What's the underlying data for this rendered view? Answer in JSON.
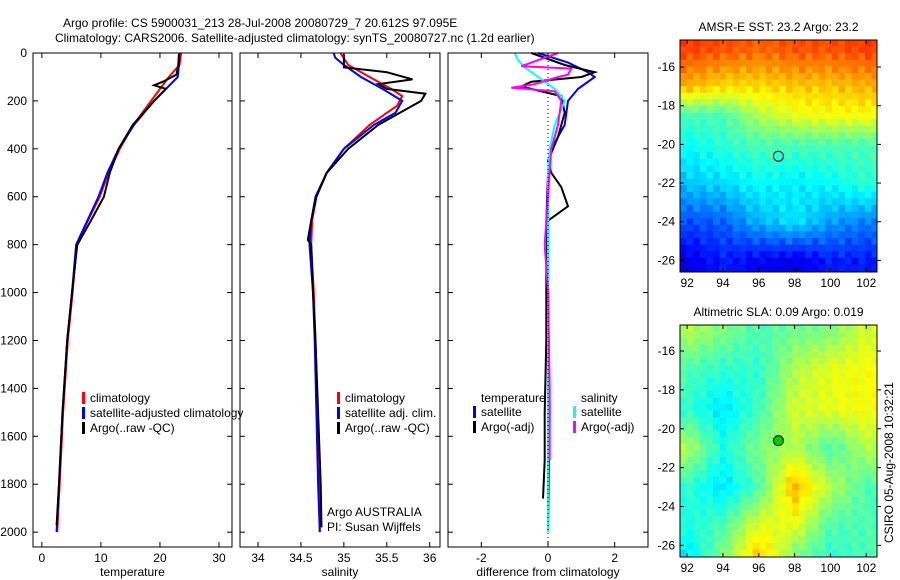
{
  "title": {
    "line1": "Argo profile: CS 5900031_213 28-Jul-2008 20080729_7 20.612S 97.095E",
    "line2": "Climatology: CARS2006. Satellite-adjusted climatology: synTS_20080727.nc (1.2d earlier)"
  },
  "side_label": "CSIRO 05-Aug-2008 10:32:21",
  "colors": {
    "climatology": "#ff0000",
    "satellite": "#0000ff",
    "argo": "#000000",
    "sal_satellite": "#00ffff",
    "sal_argo": "#ff00ff"
  },
  "chart_data": [
    {
      "type": "line",
      "xlabel": "temperature",
      "ylabel": "",
      "xlim": [
        -1.5,
        32.2
      ],
      "ylim": [
        0,
        2062
      ],
      "xticks": [
        "0",
        "10",
        "20",
        "30"
      ],
      "xtick_values": [
        0,
        10,
        20,
        30
      ],
      "yticks": [
        "0",
        "200",
        "400",
        "600",
        "800",
        "1000",
        "1200",
        "1400",
        "1600",
        "1800",
        "2000"
      ],
      "ytick_values": [
        0,
        200,
        400,
        600,
        800,
        1000,
        1200,
        1400,
        1600,
        1800,
        2000
      ],
      "legend": [
        "climatology",
        "satellite-adjusted climatology",
        "Argo(..raw -QC)"
      ],
      "series": [
        {
          "name": "climatology",
          "color": "#ff0000",
          "depth": [
            0,
            50,
            100,
            200,
            300,
            400,
            500,
            600,
            700,
            800,
            1000,
            1200,
            1500,
            1800,
            2000
          ],
          "values": [
            23.6,
            23.3,
            21.5,
            18.5,
            15.5,
            13.2,
            11.3,
            9.8,
            7.8,
            5.9,
            5.2,
            4.4,
            3.6,
            3.0,
            2.6
          ]
        },
        {
          "name": "satellite-adjusted climatology",
          "color": "#0000ff",
          "depth": [
            0,
            50,
            100,
            200,
            300,
            400,
            500,
            600,
            700,
            800,
            1000,
            1200,
            1500,
            1800,
            2000
          ],
          "values": [
            23.3,
            23.2,
            23.0,
            19.0,
            15.6,
            13.0,
            11.1,
            9.6,
            7.7,
            5.8,
            5.1,
            4.3,
            3.5,
            2.9,
            2.5
          ]
        },
        {
          "name": "Argo(..raw -QC)",
          "color": "#000000",
          "depth": [
            5,
            50,
            90,
            120,
            135,
            150,
            200,
            300,
            400,
            500,
            600,
            700,
            800,
            1000,
            1200,
            1500,
            1800,
            1970
          ],
          "values": [
            23.2,
            23.1,
            22.8,
            20.5,
            19.0,
            21.0,
            19.0,
            15.4,
            13.0,
            11.5,
            10.5,
            8.3,
            6.0,
            5.1,
            4.3,
            3.5,
            2.9,
            2.5
          ]
        }
      ]
    },
    {
      "type": "line",
      "xlabel": "salinity",
      "xlim": [
        33.79,
        36.12
      ],
      "ylim": [
        0,
        2062
      ],
      "xticks": [
        "34",
        "34.5",
        "35",
        "35.5",
        "36"
      ],
      "xtick_values": [
        34,
        34.5,
        35,
        35.5,
        36
      ],
      "legend": [
        "climatology",
        "satellite adj. clim.",
        "Argo(..raw -QC)"
      ],
      "annotation": [
        "Argo AUSTRALIA",
        "PI: Susan Wijffels"
      ],
      "series": [
        {
          "name": "climatology",
          "color": "#ff0000",
          "depth": [
            0,
            50,
            100,
            150,
            180,
            220,
            300,
            400,
            500,
            600,
            700,
            800,
            1000,
            1200,
            1500,
            1800,
            2000
          ],
          "values": [
            34.96,
            35.05,
            35.3,
            35.55,
            35.68,
            35.62,
            35.3,
            35.0,
            34.8,
            34.68,
            34.63,
            34.62,
            34.65,
            34.67,
            34.69,
            34.71,
            34.72
          ]
        },
        {
          "name": "satellite adj. clim.",
          "color": "#0000ff",
          "depth": [
            0,
            20,
            50,
            100,
            150,
            200,
            250,
            300,
            400,
            500,
            600,
            700,
            800,
            1000,
            1200,
            1500,
            1800,
            2000
          ],
          "values": [
            34.88,
            34.9,
            35.0,
            35.2,
            35.45,
            35.68,
            35.6,
            35.35,
            35.0,
            34.8,
            34.67,
            34.62,
            34.6,
            34.64,
            34.66,
            34.68,
            34.7,
            34.72
          ]
        },
        {
          "name": "Argo(..raw -QC)",
          "color": "#000000",
          "depth": [
            5,
            60,
            80,
            110,
            130,
            150,
            170,
            200,
            250,
            300,
            400,
            500,
            600,
            700,
            780,
            800,
            1000,
            1200,
            1500,
            1800,
            1980
          ],
          "values": [
            35.0,
            35.0,
            35.5,
            35.8,
            35.4,
            35.5,
            35.95,
            35.9,
            35.65,
            35.4,
            35.05,
            34.8,
            34.68,
            34.62,
            34.58,
            34.62,
            34.64,
            34.67,
            34.7,
            34.73,
            34.74
          ]
        }
      ]
    },
    {
      "type": "line",
      "xlabel": "difference from climatology",
      "xlim": [
        -3.0,
        3.0
      ],
      "ylim": [
        0,
        2062
      ],
      "xticks": [
        "-2",
        "0",
        "2"
      ],
      "xtick_values": [
        -2,
        0,
        2
      ],
      "legend_headers": [
        "temperature",
        "salinity"
      ],
      "legend": [
        "satellite",
        "Argo(-adj)",
        "satellite",
        "Argo(-adj)"
      ],
      "series": [
        {
          "name": "temperature satellite",
          "color": "#0000ff",
          "depth": [
            0,
            40,
            80,
            100,
            150,
            200,
            300,
            400,
            500,
            700,
            1000,
            1500,
            2000
          ],
          "values": [
            -0.3,
            0.6,
            1.2,
            1.4,
            0.9,
            0.6,
            0.5,
            0.1,
            0.0,
            -0.05,
            0.0,
            0.05,
            0.0
          ]
        },
        {
          "name": "temperature Argo(-adj)",
          "color": "#000000",
          "depth": [
            0,
            50,
            80,
            100,
            120,
            140,
            180,
            250,
            350,
            450,
            500,
            560,
            640,
            700,
            900,
            1200,
            1500,
            1700,
            1860
          ],
          "values": [
            -0.5,
            0.5,
            1.4,
            1.0,
            -0.5,
            -0.8,
            0.4,
            0.5,
            0.3,
            0.0,
            0.1,
            0.4,
            0.6,
            0.0,
            -0.05,
            -0.05,
            -0.1,
            -0.1,
            -0.15
          ]
        },
        {
          "name": "salinity satellite",
          "color": "#00ffff",
          "depth": [
            0,
            30,
            60,
            100,
            150,
            200,
            300,
            400,
            500,
            800,
            1200,
            1600,
            2000
          ],
          "values": [
            -1.0,
            -0.9,
            -0.7,
            -0.3,
            0.2,
            0.5,
            0.2,
            0.05,
            0.0,
            0.0,
            0.0,
            0.0,
            0.0
          ]
        },
        {
          "name": "salinity Argo(-adj)",
          "color": "#ff00ff",
          "depth": [
            0,
            40,
            55,
            65,
            90,
            100,
            130,
            145,
            160,
            200,
            300,
            400,
            700,
            800,
            1000,
            1400,
            1700
          ],
          "values": [
            0.3,
            -0.5,
            -0.8,
            0.7,
            0.6,
            0.3,
            -0.4,
            -1.1,
            0.2,
            0.4,
            0.3,
            0.1,
            -0.05,
            -0.1,
            0.0,
            0.05,
            0.05
          ]
        }
      ]
    },
    {
      "type": "heatmap",
      "title": "AMSR-E SST: 23.2 Argo: 23.2",
      "xlim": [
        91.6,
        102.6
      ],
      "ylim": [
        14.6,
        26.6
      ],
      "xticks": [
        "92",
        "94",
        "96",
        "98",
        "100",
        "102"
      ],
      "xtick_values": [
        92,
        94,
        96,
        98,
        100,
        102
      ],
      "yticks": [
        "-16",
        "-18",
        "-20",
        "-22",
        "-24",
        "-26"
      ],
      "ytick_values": [
        16,
        18,
        20,
        22,
        24,
        26
      ],
      "marker": {
        "lon": 97.095,
        "lat": 20.612,
        "fill": "none"
      },
      "grid_lon": [
        92,
        94,
        96,
        98,
        100,
        102
      ],
      "grid_lat": [
        15,
        17,
        18.5,
        20,
        22,
        24,
        26
      ],
      "colormap_fraction": [
        [
          0.82,
          0.8,
          0.78,
          0.8,
          0.8,
          0.82
        ],
        [
          0.7,
          0.66,
          0.66,
          0.68,
          0.68,
          0.7
        ],
        [
          0.45,
          0.45,
          0.55,
          0.6,
          0.62,
          0.62
        ],
        [
          0.38,
          0.42,
          0.45,
          0.45,
          0.45,
          0.45
        ],
        [
          0.32,
          0.34,
          0.38,
          0.36,
          0.38,
          0.42
        ],
        [
          0.2,
          0.22,
          0.3,
          0.35,
          0.28,
          0.25
        ],
        [
          0.1,
          0.15,
          0.12,
          0.1,
          0.15,
          0.15
        ]
      ]
    },
    {
      "type": "heatmap",
      "title": "Altimetric SLA: 0.09 Argo: 0.019",
      "xlim": [
        91.6,
        102.6
      ],
      "ylim": [
        14.66,
        26.6
      ],
      "xticks": [
        "92",
        "94",
        "96",
        "98",
        "100",
        "102"
      ],
      "xtick_values": [
        92,
        94,
        96,
        98,
        100,
        102
      ],
      "yticks": [
        "-16",
        "-18",
        "-20",
        "-22",
        "-24",
        "-26"
      ],
      "ytick_values": [
        16,
        18,
        20,
        22,
        24,
        26
      ],
      "marker": {
        "lon": 97.095,
        "lat": 20.612,
        "fill": "#00cc00"
      },
      "grid_lon": [
        92,
        94,
        96,
        98,
        100,
        102
      ],
      "grid_lat": [
        15,
        17,
        19,
        21,
        23,
        25,
        26.5
      ],
      "colormap_fraction": [
        [
          0.55,
          0.5,
          0.45,
          0.48,
          0.5,
          0.58
        ],
        [
          0.45,
          0.42,
          0.42,
          0.55,
          0.6,
          0.62
        ],
        [
          0.42,
          0.35,
          0.44,
          0.58,
          0.6,
          0.62
        ],
        [
          0.55,
          0.4,
          0.5,
          0.55,
          0.45,
          0.55
        ],
        [
          0.42,
          0.35,
          0.45,
          0.7,
          0.55,
          0.45
        ],
        [
          0.4,
          0.45,
          0.6,
          0.6,
          0.45,
          0.45
        ],
        [
          0.35,
          0.5,
          0.68,
          0.5,
          0.42,
          0.45
        ]
      ]
    }
  ]
}
